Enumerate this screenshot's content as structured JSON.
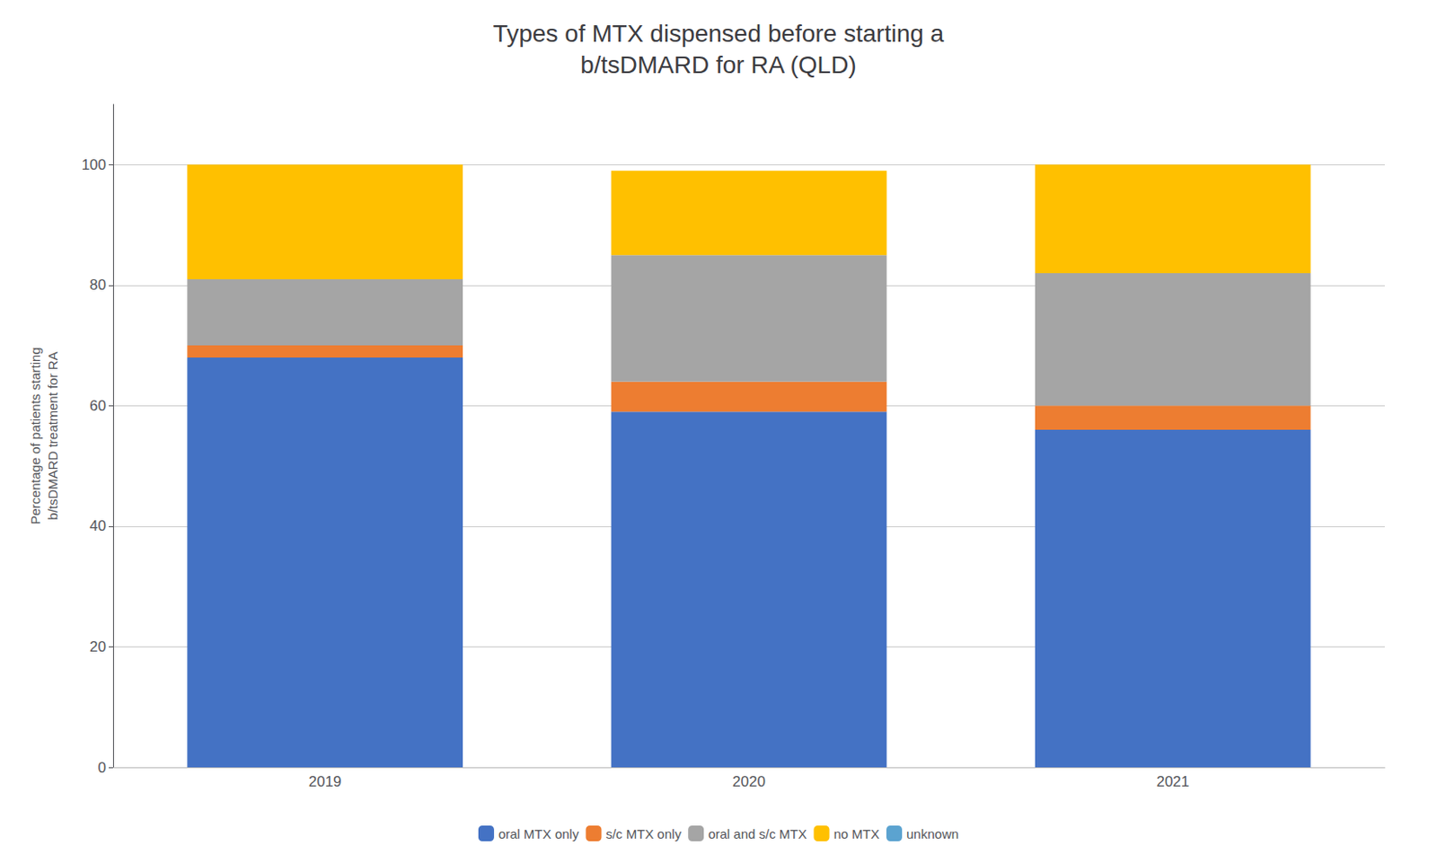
{
  "chart_data": {
    "type": "bar",
    "title": "Types of MTX dispensed before starting a\nb/tsDMARD for RA (QLD)",
    "ylabel": "Percentage of patients starting\nb/tsDMARD treatment for RA",
    "categories": [
      "2019",
      "2020",
      "2021"
    ],
    "series": [
      {
        "name": "oral MTX only",
        "color": "#4472C4",
        "values": [
          68,
          59,
          56
        ]
      },
      {
        "name": "s/c MTX only",
        "color": "#ED7D31",
        "values": [
          2,
          5,
          4
        ]
      },
      {
        "name": "oral and s/c MTX",
        "color": "#A5A5A5",
        "values": [
          11,
          21,
          22
        ]
      },
      {
        "name": "no MTX",
        "color": "#FFC000",
        "values": [
          19,
          14,
          18
        ]
      },
      {
        "name": "unknown",
        "color": "#5BA3D0",
        "values": [
          0,
          0,
          0
        ]
      }
    ],
    "ylim": [
      0,
      110
    ],
    "yticks": [
      0,
      20,
      40,
      60,
      80,
      100
    ],
    "grid": true,
    "legend": "bottom",
    "stacked": true
  }
}
